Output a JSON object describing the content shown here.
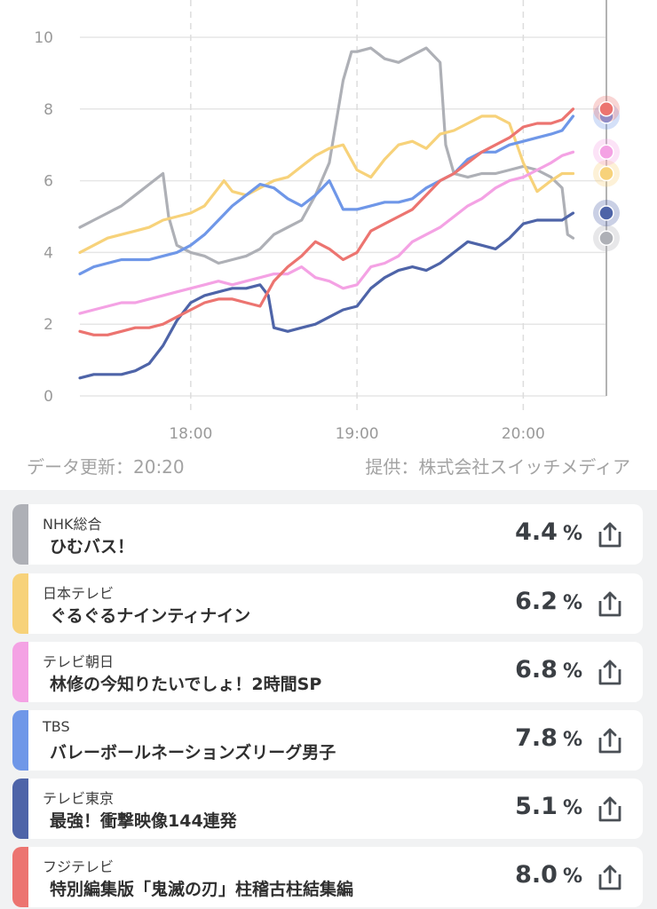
{
  "chart_data": {
    "type": "line",
    "x_ticks": [
      "18:00",
      "19:00",
      "20:00"
    ],
    "y_ticks": [
      0,
      2,
      4,
      6,
      8,
      10
    ],
    "xlim": [
      "17:20",
      "20:30"
    ],
    "ylim": [
      0,
      10
    ],
    "grid": true,
    "series": [
      {
        "name": "NHK総合",
        "color": "#aeb0b6",
        "points": [
          [
            "17:20",
            4.7
          ],
          [
            "17:25",
            4.9
          ],
          [
            "17:30",
            5.1
          ],
          [
            "17:35",
            5.3
          ],
          [
            "17:40",
            5.6
          ],
          [
            "17:45",
            5.9
          ],
          [
            "17:50",
            6.2
          ],
          [
            "17:52",
            5.0
          ],
          [
            "17:55",
            4.2
          ],
          [
            "18:00",
            4.0
          ],
          [
            "18:05",
            3.9
          ],
          [
            "18:10",
            3.7
          ],
          [
            "18:15",
            3.8
          ],
          [
            "18:20",
            3.9
          ],
          [
            "18:25",
            4.1
          ],
          [
            "18:30",
            4.5
          ],
          [
            "18:35",
            4.7
          ],
          [
            "18:40",
            4.9
          ],
          [
            "18:45",
            5.6
          ],
          [
            "18:50",
            6.5
          ],
          [
            "18:55",
            8.8
          ],
          [
            "18:58",
            9.6
          ],
          [
            "19:00",
            9.6
          ],
          [
            "19:05",
            9.7
          ],
          [
            "19:10",
            9.4
          ],
          [
            "19:15",
            9.3
          ],
          [
            "19:20",
            9.5
          ],
          [
            "19:25",
            9.7
          ],
          [
            "19:30",
            9.3
          ],
          [
            "19:32",
            7.0
          ],
          [
            "19:35",
            6.2
          ],
          [
            "19:40",
            6.1
          ],
          [
            "19:45",
            6.2
          ],
          [
            "19:50",
            6.2
          ],
          [
            "19:55",
            6.3
          ],
          [
            "20:00",
            6.4
          ],
          [
            "20:05",
            6.3
          ],
          [
            "20:10",
            6.1
          ],
          [
            "20:14",
            5.8
          ],
          [
            "20:16",
            4.5
          ],
          [
            "20:18",
            4.4
          ]
        ],
        "last_value": 4.4
      },
      {
        "name": "日本テレビ",
        "color": "#f7d27a",
        "points": [
          [
            "17:20",
            4.0
          ],
          [
            "17:25",
            4.2
          ],
          [
            "17:30",
            4.4
          ],
          [
            "17:35",
            4.5
          ],
          [
            "17:40",
            4.6
          ],
          [
            "17:45",
            4.7
          ],
          [
            "17:50",
            4.9
          ],
          [
            "17:55",
            5.0
          ],
          [
            "18:00",
            5.1
          ],
          [
            "18:05",
            5.3
          ],
          [
            "18:10",
            5.8
          ],
          [
            "18:12",
            6.0
          ],
          [
            "18:15",
            5.7
          ],
          [
            "18:20",
            5.6
          ],
          [
            "18:25",
            5.8
          ],
          [
            "18:30",
            6.0
          ],
          [
            "18:35",
            6.1
          ],
          [
            "18:40",
            6.4
          ],
          [
            "18:45",
            6.7
          ],
          [
            "18:50",
            6.9
          ],
          [
            "18:55",
            7.0
          ],
          [
            "19:00",
            6.3
          ],
          [
            "19:05",
            6.1
          ],
          [
            "19:10",
            6.6
          ],
          [
            "19:15",
            7.0
          ],
          [
            "19:20",
            7.1
          ],
          [
            "19:25",
            6.9
          ],
          [
            "19:30",
            7.3
          ],
          [
            "19:35",
            7.4
          ],
          [
            "19:40",
            7.6
          ],
          [
            "19:45",
            7.8
          ],
          [
            "19:50",
            7.8
          ],
          [
            "19:55",
            7.6
          ],
          [
            "20:00",
            6.5
          ],
          [
            "20:05",
            5.7
          ],
          [
            "20:10",
            6.0
          ],
          [
            "20:14",
            6.2
          ],
          [
            "20:18",
            6.2
          ]
        ],
        "last_value": 6.2
      },
      {
        "name": "テレビ朝日",
        "color": "#f4a2e4",
        "points": [
          [
            "17:20",
            2.3
          ],
          [
            "17:25",
            2.4
          ],
          [
            "17:30",
            2.5
          ],
          [
            "17:35",
            2.6
          ],
          [
            "17:40",
            2.6
          ],
          [
            "17:45",
            2.7
          ],
          [
            "17:50",
            2.8
          ],
          [
            "17:55",
            2.9
          ],
          [
            "18:00",
            3.0
          ],
          [
            "18:05",
            3.1
          ],
          [
            "18:10",
            3.2
          ],
          [
            "18:15",
            3.1
          ],
          [
            "18:20",
            3.2
          ],
          [
            "18:25",
            3.3
          ],
          [
            "18:30",
            3.4
          ],
          [
            "18:35",
            3.4
          ],
          [
            "18:40",
            3.6
          ],
          [
            "18:45",
            3.3
          ],
          [
            "18:50",
            3.2
          ],
          [
            "18:55",
            3.0
          ],
          [
            "19:00",
            3.1
          ],
          [
            "19:05",
            3.6
          ],
          [
            "19:10",
            3.7
          ],
          [
            "19:15",
            3.9
          ],
          [
            "19:20",
            4.3
          ],
          [
            "19:25",
            4.5
          ],
          [
            "19:30",
            4.7
          ],
          [
            "19:35",
            5.0
          ],
          [
            "19:40",
            5.3
          ],
          [
            "19:45",
            5.5
          ],
          [
            "19:50",
            5.8
          ],
          [
            "19:55",
            6.0
          ],
          [
            "20:00",
            6.1
          ],
          [
            "20:05",
            6.3
          ],
          [
            "20:10",
            6.5
          ],
          [
            "20:14",
            6.7
          ],
          [
            "20:18",
            6.8
          ]
        ],
        "last_value": 6.8
      },
      {
        "name": "TBS",
        "color": "#6f97e8",
        "points": [
          [
            "17:20",
            3.4
          ],
          [
            "17:25",
            3.6
          ],
          [
            "17:30",
            3.7
          ],
          [
            "17:35",
            3.8
          ],
          [
            "17:40",
            3.8
          ],
          [
            "17:45",
            3.8
          ],
          [
            "17:50",
            3.9
          ],
          [
            "17:55",
            4.0
          ],
          [
            "18:00",
            4.2
          ],
          [
            "18:05",
            4.5
          ],
          [
            "18:10",
            4.9
          ],
          [
            "18:15",
            5.3
          ],
          [
            "18:20",
            5.6
          ],
          [
            "18:25",
            5.9
          ],
          [
            "18:30",
            5.8
          ],
          [
            "18:35",
            5.5
          ],
          [
            "18:40",
            5.3
          ],
          [
            "18:45",
            5.6
          ],
          [
            "18:50",
            6.0
          ],
          [
            "18:55",
            5.2
          ],
          [
            "19:00",
            5.2
          ],
          [
            "19:05",
            5.3
          ],
          [
            "19:10",
            5.4
          ],
          [
            "19:15",
            5.4
          ],
          [
            "19:20",
            5.5
          ],
          [
            "19:25",
            5.8
          ],
          [
            "19:30",
            6.0
          ],
          [
            "19:35",
            6.2
          ],
          [
            "19:40",
            6.6
          ],
          [
            "19:45",
            6.8
          ],
          [
            "19:50",
            6.8
          ],
          [
            "19:55",
            7.0
          ],
          [
            "20:00",
            7.1
          ],
          [
            "20:05",
            7.2
          ],
          [
            "20:10",
            7.3
          ],
          [
            "20:14",
            7.4
          ],
          [
            "20:18",
            7.8
          ]
        ],
        "last_value": 7.8
      },
      {
        "name": "テレビ東京",
        "color": "#4e64a8",
        "points": [
          [
            "17:20",
            0.5
          ],
          [
            "17:25",
            0.6
          ],
          [
            "17:30",
            0.6
          ],
          [
            "17:35",
            0.6
          ],
          [
            "17:40",
            0.7
          ],
          [
            "17:45",
            0.9
          ],
          [
            "17:50",
            1.4
          ],
          [
            "17:55",
            2.1
          ],
          [
            "18:00",
            2.6
          ],
          [
            "18:05",
            2.8
          ],
          [
            "18:10",
            2.9
          ],
          [
            "18:15",
            3.0
          ],
          [
            "18:20",
            3.0
          ],
          [
            "18:25",
            3.1
          ],
          [
            "18:28",
            2.8
          ],
          [
            "18:30",
            1.9
          ],
          [
            "18:35",
            1.8
          ],
          [
            "18:40",
            1.9
          ],
          [
            "18:45",
            2.0
          ],
          [
            "18:50",
            2.2
          ],
          [
            "18:55",
            2.4
          ],
          [
            "19:00",
            2.5
          ],
          [
            "19:05",
            3.0
          ],
          [
            "19:10",
            3.3
          ],
          [
            "19:15",
            3.5
          ],
          [
            "19:20",
            3.6
          ],
          [
            "19:25",
            3.5
          ],
          [
            "19:30",
            3.7
          ],
          [
            "19:35",
            4.0
          ],
          [
            "19:40",
            4.3
          ],
          [
            "19:45",
            4.2
          ],
          [
            "19:50",
            4.1
          ],
          [
            "19:55",
            4.4
          ],
          [
            "20:00",
            4.8
          ],
          [
            "20:05",
            4.9
          ],
          [
            "20:10",
            4.9
          ],
          [
            "20:14",
            4.9
          ],
          [
            "20:18",
            5.1
          ]
        ],
        "last_value": 5.1
      },
      {
        "name": "フジテレビ",
        "color": "#ec7470",
        "points": [
          [
            "17:20",
            1.8
          ],
          [
            "17:25",
            1.7
          ],
          [
            "17:30",
            1.7
          ],
          [
            "17:35",
            1.8
          ],
          [
            "17:40",
            1.9
          ],
          [
            "17:45",
            1.9
          ],
          [
            "17:50",
            2.0
          ],
          [
            "17:55",
            2.2
          ],
          [
            "18:00",
            2.4
          ],
          [
            "18:05",
            2.6
          ],
          [
            "18:10",
            2.7
          ],
          [
            "18:15",
            2.7
          ],
          [
            "18:20",
            2.6
          ],
          [
            "18:25",
            2.5
          ],
          [
            "18:30",
            3.2
          ],
          [
            "18:35",
            3.6
          ],
          [
            "18:40",
            3.9
          ],
          [
            "18:45",
            4.3
          ],
          [
            "18:50",
            4.1
          ],
          [
            "18:55",
            3.8
          ],
          [
            "19:00",
            4.0
          ],
          [
            "19:05",
            4.6
          ],
          [
            "19:10",
            4.8
          ],
          [
            "19:15",
            5.0
          ],
          [
            "19:20",
            5.2
          ],
          [
            "19:25",
            5.6
          ],
          [
            "19:30",
            6.0
          ],
          [
            "19:35",
            6.2
          ],
          [
            "19:40",
            6.5
          ],
          [
            "19:45",
            6.8
          ],
          [
            "19:50",
            7.0
          ],
          [
            "19:55",
            7.2
          ],
          [
            "20:00",
            7.5
          ],
          [
            "20:05",
            7.6
          ],
          [
            "20:10",
            7.6
          ],
          [
            "20:14",
            7.7
          ],
          [
            "20:18",
            8.0
          ]
        ],
        "last_value": 8.0
      }
    ]
  },
  "footer": {
    "updated": "データ更新：20:20",
    "provider": "提供：株式会社スイッチメディア"
  },
  "channels": [
    {
      "channel": "NHK総合",
      "program": "ひむバス！",
      "rating": "4.4",
      "unit": "%",
      "color": "#aeb0b6",
      "icon": "share-icon"
    },
    {
      "channel": "日本テレビ",
      "program": "ぐるぐるナインティナイン",
      "rating": "6.2",
      "unit": "%",
      "color": "#f7d27a",
      "icon": "share-icon"
    },
    {
      "channel": "テレビ朝日",
      "program": "林修の今知りたいでしょ！2時間SP",
      "rating": "6.8",
      "unit": "%",
      "color": "#f4a2e4",
      "icon": "share-icon"
    },
    {
      "channel": "TBS",
      "program": "バレーボールネーションズリーグ男子",
      "rating": "7.8",
      "unit": "%",
      "color": "#6f97e8",
      "icon": "share-icon"
    },
    {
      "channel": "テレビ東京",
      "program": "最強！衝撃映像144連発",
      "rating": "5.1",
      "unit": "%",
      "color": "#4e64a8",
      "icon": "share-icon"
    },
    {
      "channel": "フジテレビ",
      "program": "特別編集版「鬼滅の刃」柱稽古柱結集編",
      "rating": "8.0",
      "unit": "%",
      "color": "#ec7470",
      "icon": "share-icon"
    }
  ]
}
